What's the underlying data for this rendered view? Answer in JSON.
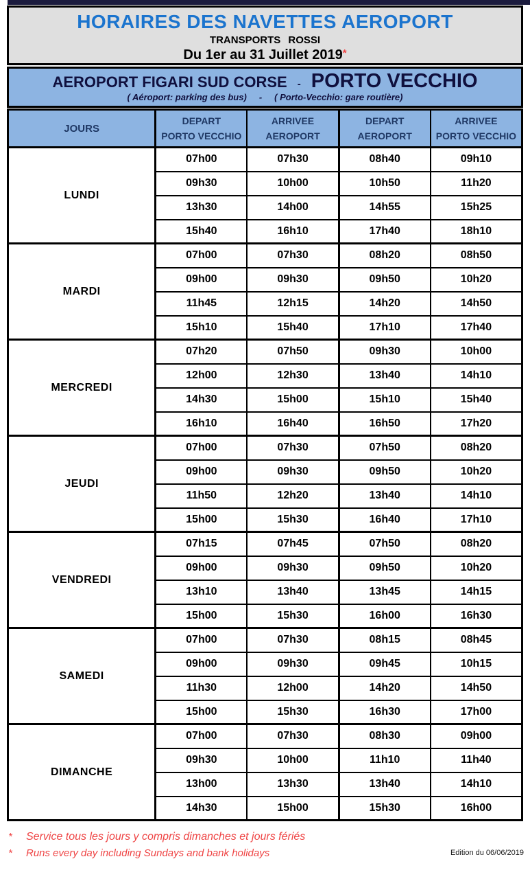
{
  "header": {
    "title": "HORAIRES DES NAVETTES AEROPORT",
    "operator": "TRANSPORTS ROSSI",
    "period": "Du 1er au 31 Juillet 2019",
    "asterisk": "*"
  },
  "banner": {
    "origin": "AEROPORT FIGARI SUD CORSE",
    "separator": "-",
    "destination": "PORTO VECCHIO",
    "note_left": "( Aéroport: parking des bus)",
    "note_separator": "-",
    "note_right": "( Porto-Vecchio: gare routière)"
  },
  "table": {
    "jours_label": "JOURS",
    "columns": [
      {
        "line1": "DEPART",
        "line2": "PORTO VECCHIO"
      },
      {
        "line1": "ARRIVEE",
        "line2": "AEROPORT"
      },
      {
        "line1": "DEPART",
        "line2": "AEROPORT"
      },
      {
        "line1": "ARRIVEE",
        "line2": "PORTO VECCHIO"
      }
    ],
    "days": [
      {
        "name": "LUNDI",
        "rows": [
          [
            "07h00",
            "07h30",
            "08h40",
            "09h10"
          ],
          [
            "09h30",
            "10h00",
            "10h50",
            "11h20"
          ],
          [
            "13h30",
            "14h00",
            "14h55",
            "15h25"
          ],
          [
            "15h40",
            "16h10",
            "17h40",
            "18h10"
          ]
        ]
      },
      {
        "name": "MARDI",
        "rows": [
          [
            "07h00",
            "07h30",
            "08h20",
            "08h50"
          ],
          [
            "09h00",
            "09h30",
            "09h50",
            "10h20"
          ],
          [
            "11h45",
            "12h15",
            "14h20",
            "14h50"
          ],
          [
            "15h10",
            "15h40",
            "17h10",
            "17h40"
          ]
        ]
      },
      {
        "name": "MERCREDI",
        "rows": [
          [
            "07h20",
            "07h50",
            "09h30",
            "10h00"
          ],
          [
            "12h00",
            "12h30",
            "13h40",
            "14h10"
          ],
          [
            "14h30",
            "15h00",
            "15h10",
            "15h40"
          ],
          [
            "16h10",
            "16h40",
            "16h50",
            "17h20"
          ]
        ]
      },
      {
        "name": "JEUDI",
        "rows": [
          [
            "07h00",
            "07h30",
            "07h50",
            "08h20"
          ],
          [
            "09h00",
            "09h30",
            "09h50",
            "10h20"
          ],
          [
            "11h50",
            "12h20",
            "13h40",
            "14h10"
          ],
          [
            "15h00",
            "15h30",
            "16h40",
            "17h10"
          ]
        ]
      },
      {
        "name": "VENDREDI",
        "rows": [
          [
            "07h15",
            "07h45",
            "07h50",
            "08h20"
          ],
          [
            "09h00",
            "09h30",
            "09h50",
            "10h20"
          ],
          [
            "13h10",
            "13h40",
            "13h45",
            "14h15"
          ],
          [
            "15h00",
            "15h30",
            "16h00",
            "16h30"
          ]
        ]
      },
      {
        "name": "SAMEDI",
        "rows": [
          [
            "07h00",
            "07h30",
            "08h15",
            "08h45"
          ],
          [
            "09h00",
            "09h30",
            "09h45",
            "10h15"
          ],
          [
            "11h30",
            "12h00",
            "14h20",
            "14h50"
          ],
          [
            "15h00",
            "15h30",
            "16h30",
            "17h00"
          ]
        ]
      },
      {
        "name": "DIMANCHE",
        "rows": [
          [
            "07h00",
            "07h30",
            "08h30",
            "09h00"
          ],
          [
            "09h30",
            "10h00",
            "11h10",
            "11h40"
          ],
          [
            "13h00",
            "13h30",
            "13h40",
            "14h10"
          ],
          [
            "14h30",
            "15h00",
            "15h30",
            "16h00"
          ]
        ]
      }
    ]
  },
  "footer": {
    "asterisk": "*",
    "note_fr": "Service tous les jours y compris dimanches et jours fériés",
    "note_en": "Runs every day including Sundays and bank holidays",
    "edition": "Edition du 06/06/2019"
  },
  "colors": {
    "title_blue": "#1B74CE",
    "banner_blue": "#8DB4E2",
    "header_text_navy": "#1F3864",
    "banner_text_navy": "#10103E",
    "note_red": "#EF4444",
    "title_box_gray": "#DFDFDF",
    "border_black": "#000000"
  }
}
